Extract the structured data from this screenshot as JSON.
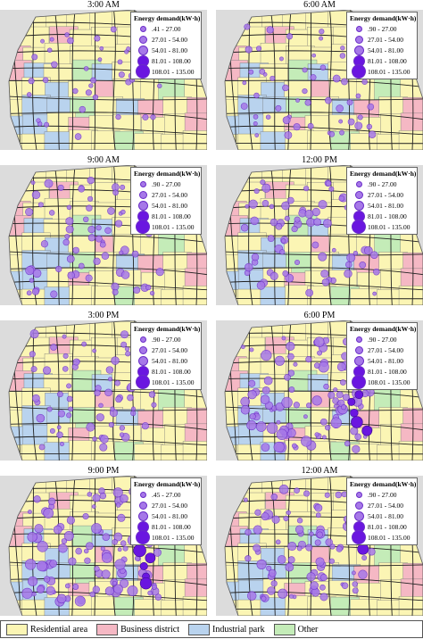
{
  "legend_title": "Energy demand(kW·h)",
  "panels": [
    {
      "title": "3:00 AM",
      "legend": [
        ".41 - 27.00",
        "27.01 - 54.00",
        "54.01 - 81.00",
        "81.01 - 108.00",
        "108.01 - 135.00"
      ],
      "intensity": 1
    },
    {
      "title": "6:00 AM",
      "legend": [
        ".90 - 27.00",
        "27.01 - 54.00",
        "54.01 - 81.00",
        "81.01 - 108.00",
        "108.01 - 135.00"
      ],
      "intensity": 2
    },
    {
      "title": "9:00 AM",
      "legend": [
        ".90 - 27.00",
        "27.01 - 54.00",
        "54.01 - 81.00",
        "81.01 - 108.00",
        "108.01 - 135.00"
      ],
      "intensity": 3
    },
    {
      "title": "12:00 PM",
      "legend": [
        ".90 - 27.00",
        "27.01 - 54.00",
        "54.01 - 81.00",
        "81.01 - 108.00",
        "108.01 - 135.00"
      ],
      "intensity": 3
    },
    {
      "title": "3:00 PM",
      "legend": [
        ".90 - 27.00",
        "27.01 - 54.00",
        "54.01 - 81.00",
        "81.01 - 108.00",
        "108.01 - 135.00"
      ],
      "intensity": 3
    },
    {
      "title": "6:00 PM",
      "legend": [
        ".90 - 27.00",
        "27.01 - 54.00",
        "54.01 - 81.00",
        "81.01 - 108.00",
        "108.01 - 135.00"
      ],
      "intensity": 5
    },
    {
      "title": "9:00 PM",
      "legend": [
        ".45 - 27.00",
        "27.01 - 54.00",
        "54.01 - 81.00",
        "81.01 - 108.00",
        "108.01 - 135.00"
      ],
      "intensity": 5
    },
    {
      "title": "12:00 AM",
      "legend": [
        ".90 - 27.00",
        "27.01 - 54.00",
        "54.01 - 81.00",
        "81.01 - 108.00",
        "108.01 - 135.00"
      ],
      "intensity": 4
    }
  ],
  "land_use": [
    {
      "label": "Residential area",
      "color": "#fbf5b4"
    },
    {
      "label": "Business district",
      "color": "#f5b8c4"
    },
    {
      "label": "Industrial park",
      "color": "#b9d3ee"
    },
    {
      "label": "Other",
      "color": "#c4ecb8"
    }
  ],
  "colors": {
    "background_map": "#dcdcdc",
    "road": "#222222",
    "point_fill": "#a678e8",
    "point_stroke": "#6a2cc8",
    "point_dark": "#6a16e0"
  }
}
